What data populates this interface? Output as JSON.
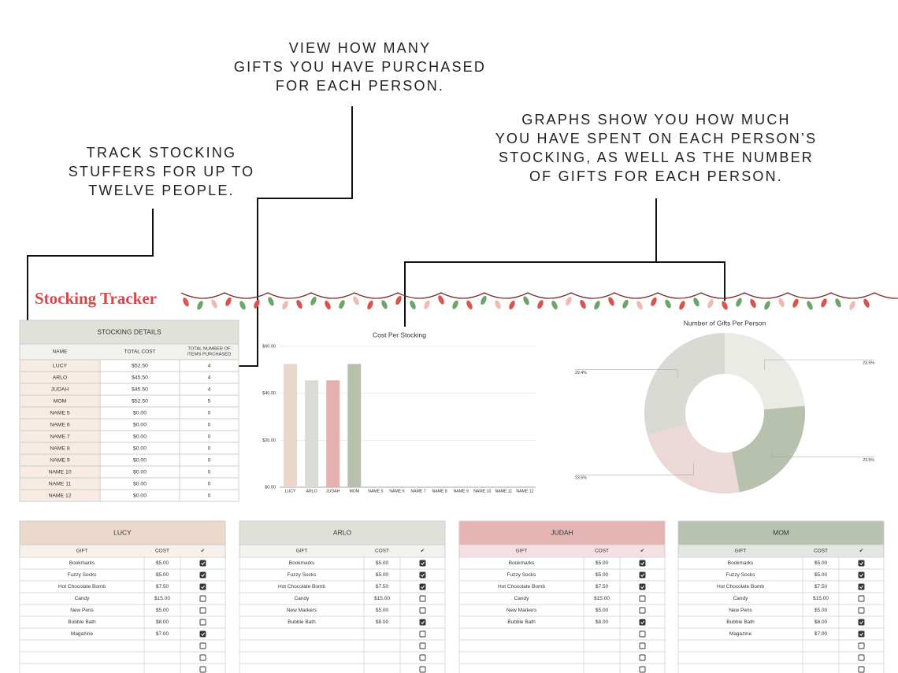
{
  "annotations": {
    "left": [
      "TRACK STOCKING",
      "STUFFERS FOR UP TO",
      "TWELVE PEOPLE."
    ],
    "middle": [
      "VIEW HOW MANY",
      "GIFTS YOU HAVE PURCHASED",
      "FOR EACH PERSON."
    ],
    "right": [
      "GRAPHS SHOW YOU HOW MUCH",
      "YOU HAVE SPENT ON EACH PERSON’S",
      "STOCKING, AS WELL AS THE NUMBER",
      "OF GIFTS FOR EACH PERSON."
    ]
  },
  "title": "Stocking Tracker",
  "details": {
    "title": "STOCKING DETAILS",
    "columns": [
      "NAME",
      "TOTAL COST",
      [
        "TOTAL NUMBER OF",
        "ITEMS PURCHASED"
      ]
    ],
    "rows": [
      [
        "LUCY",
        "$52.50",
        4
      ],
      [
        "ARLO",
        "$45.50",
        4
      ],
      [
        "JUDAH",
        "$45.50",
        4
      ],
      [
        "MOM",
        "$52.50",
        5
      ],
      [
        "NAME 5",
        "$0.00",
        0
      ],
      [
        "NAME 6",
        "$0.00",
        0
      ],
      [
        "NAME 7",
        "$0.00",
        0
      ],
      [
        "NAME 8",
        "$0.00",
        0
      ],
      [
        "NAME 9",
        "$0.00",
        0
      ],
      [
        "NAME 10",
        "$0.00",
        0
      ],
      [
        "NAME 11",
        "$0.00",
        0
      ],
      [
        "NAME 12",
        "$0.00",
        0
      ]
    ]
  },
  "chart_data": [
    {
      "type": "bar",
      "title": "Cost Per Stocking",
      "categories": [
        "LUCY",
        "ARLO",
        "JUDAH",
        "MOM",
        "NAME 5",
        "NAME 6",
        "NAME 7",
        "NAME 8",
        "NAME 9",
        "NAME 10",
        "NAME 11",
        "NAME 12"
      ],
      "values": [
        52.5,
        45.5,
        45.5,
        52.5,
        0,
        0,
        0,
        0,
        0,
        0,
        0,
        0
      ],
      "colors": [
        "#e8d6ca",
        "#d9dbd4",
        "#e5b0af",
        "#b7c1ae"
      ],
      "ylim": [
        0,
        60
      ],
      "yticks": [
        {
          "value": 0,
          "label": "$0.00"
        },
        {
          "value": 20,
          "label": "$20.00"
        },
        {
          "value": 40,
          "label": "$40.00"
        },
        {
          "value": 60,
          "label": "$60.00"
        }
      ],
      "grid": true
    },
    {
      "type": "pie",
      "title": "Number of Gifts Per Person",
      "values": [
        4,
        4,
        4,
        5
      ],
      "value_labels": [
        "23.5%",
        "23.5%",
        "23.5%",
        "29.4%"
      ],
      "colors": [
        "#ebebe5",
        "#b7c1ae",
        "#ecd8d7",
        "#d8dad3"
      ]
    }
  ],
  "cards": {
    "columns": [
      "GIFT",
      "COST",
      "✔"
    ],
    "people": [
      {
        "name": "LUCY",
        "color": "#ecd9cc",
        "gifts": [
          {
            "gift": "Bookmarks",
            "cost": "$5.00",
            "checked": true
          },
          {
            "gift": "Fuzzy Socks",
            "cost": "$5.00",
            "checked": true
          },
          {
            "gift": "Hot Chocolate Bomb",
            "cost": "$7.50",
            "checked": true
          },
          {
            "gift": "Candy",
            "cost": "$15.00",
            "checked": false
          },
          {
            "gift": "New Pens",
            "cost": "$5.00",
            "checked": false
          },
          {
            "gift": "Bubble Bath",
            "cost": "$8.00",
            "checked": false
          },
          {
            "gift": "Magazine",
            "cost": "$7.00",
            "checked": true
          }
        ]
      },
      {
        "name": "ARLO",
        "color": "#dfe0da",
        "gifts": [
          {
            "gift": "Bookmarks",
            "cost": "$5.00",
            "checked": true
          },
          {
            "gift": "Fuzzy Socks",
            "cost": "$5.00",
            "checked": true
          },
          {
            "gift": "Hot Chocolate Bomb",
            "cost": "$7.50",
            "checked": true
          },
          {
            "gift": "Candy",
            "cost": "$15.00",
            "checked": false
          },
          {
            "gift": "New Markers",
            "cost": "$5.00",
            "checked": false
          },
          {
            "gift": "Bubble Bath",
            "cost": "$8.00",
            "checked": true
          }
        ]
      },
      {
        "name": "JUDAH",
        "color": "#e7b4b4",
        "gifts": [
          {
            "gift": "Bookmarks",
            "cost": "$5.00",
            "checked": true
          },
          {
            "gift": "Fuzzy Socks",
            "cost": "$5.00",
            "checked": true
          },
          {
            "gift": "Hot Chocolate Bomb",
            "cost": "$7.50",
            "checked": true
          },
          {
            "gift": "Candy",
            "cost": "$15.00",
            "checked": false
          },
          {
            "gift": "New Markers",
            "cost": "$5.00",
            "checked": false
          },
          {
            "gift": "Bubble Bath",
            "cost": "$8.00",
            "checked": true
          }
        ]
      },
      {
        "name": "MOM",
        "color": "#b8c2b0",
        "gifts": [
          {
            "gift": "Bookmarks",
            "cost": "$5.00",
            "checked": true
          },
          {
            "gift": "Fuzzy Socks",
            "cost": "$5.00",
            "checked": true
          },
          {
            "gift": "Hot Chocolate Bomb",
            "cost": "$7.50",
            "checked": true
          },
          {
            "gift": "Candy",
            "cost": "$15.00",
            "checked": false
          },
          {
            "gift": "New Pens",
            "cost": "$5.00",
            "checked": false
          },
          {
            "gift": "Bubble Bath",
            "cost": "$8.00",
            "checked": true
          },
          {
            "gift": "Magazine",
            "cost": "$7.00",
            "checked": true
          }
        ]
      }
    ]
  }
}
